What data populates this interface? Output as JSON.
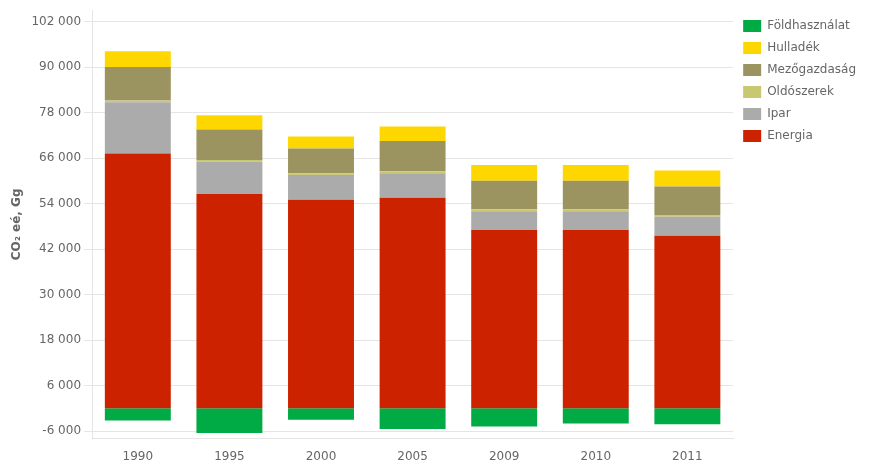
{
  "chart_data": {
    "type": "bar",
    "stacked": true,
    "ylabel": "CO₂ eé, Gg",
    "categories": [
      "1990",
      "1995",
      "2000",
      "2005",
      "2009",
      "2010",
      "2011"
    ],
    "series": [
      {
        "name": "Energia",
        "color": "#CC2200",
        "values": [
          67200,
          56500,
          55000,
          55500,
          47000,
          47000,
          45500
        ]
      },
      {
        "name": "Ipar",
        "color": "#ABABAB",
        "values": [
          13500,
          8500,
          6500,
          6500,
          5000,
          5000,
          5000
        ]
      },
      {
        "name": "Oldószerek",
        "color": "#C8C870",
        "values": [
          500,
          500,
          500,
          500,
          500,
          500,
          500
        ]
      },
      {
        "name": "Mezőgazdaság",
        "color": "#9C9460",
        "values": [
          8800,
          8000,
          6500,
          8000,
          7500,
          7500,
          7500
        ]
      },
      {
        "name": "Hulladék",
        "color": "#FFD700",
        "values": [
          4200,
          3800,
          3200,
          3800,
          4200,
          4200,
          4200
        ]
      },
      {
        "name": "Földhasználat",
        "color": "#00AA44",
        "values": [
          -3200,
          -6500,
          -3000,
          -5500,
          -4800,
          -4000,
          -4200
        ]
      }
    ],
    "ylim": [
      -8000,
      105000
    ],
    "yticks": [
      {
        "value": -6000,
        "label": "-6 000"
      },
      {
        "value": 6000,
        "label": "6 000"
      },
      {
        "value": 18000,
        "label": "18 000"
      },
      {
        "value": 30000,
        "label": "30 000"
      },
      {
        "value": 42000,
        "label": "42 000"
      },
      {
        "value": 54000,
        "label": "54 000"
      },
      {
        "value": 66000,
        "label": "66 000"
      },
      {
        "value": 78000,
        "label": "78 000"
      },
      {
        "value": 90000,
        "label": "90 000"
      },
      {
        "value": 102000,
        "label": "102 000"
      }
    ],
    "grid": "y",
    "legend": "upper right"
  }
}
